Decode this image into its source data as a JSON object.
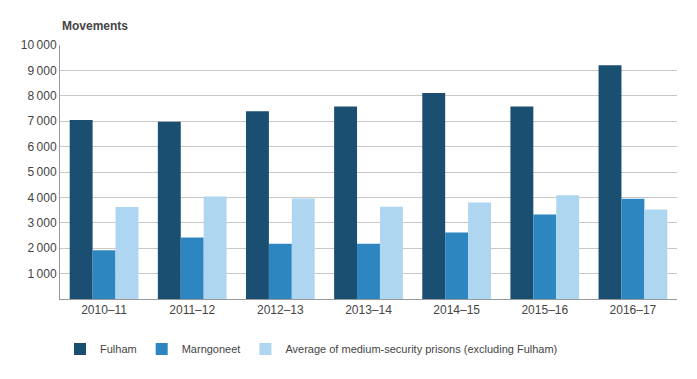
{
  "chart_data": {
    "type": "bar",
    "ylabel": "Movements",
    "categories": [
      "2010–11",
      "2011–12",
      "2012–13",
      "2013–14",
      "2014–15",
      "2015–16",
      "2016–17"
    ],
    "series": [
      {
        "name": "Fulham",
        "color": "#1B4F72",
        "values": [
          7050,
          6980,
          7390,
          7580,
          8110,
          7580,
          9200
        ]
      },
      {
        "name": "Marngoneet",
        "color": "#2E86C1",
        "values": [
          1920,
          2420,
          2180,
          2180,
          2620,
          3330,
          3950
        ]
      },
      {
        "name": "Average of medium-security prisons (excluding Fulham)",
        "color": "#AED6F1",
        "values": [
          3620,
          4040,
          3960,
          3630,
          3800,
          4080,
          3520
        ]
      }
    ],
    "ylim": [
      0,
      10000
    ],
    "yticks": [
      {
        "value": 1000,
        "label": "1 000"
      },
      {
        "value": 2000,
        "label": "2 000"
      },
      {
        "value": 3000,
        "label": "3 000"
      },
      {
        "value": 4000,
        "label": "4 000"
      },
      {
        "value": 5000,
        "label": "5 000"
      },
      {
        "value": 6000,
        "label": "6 000"
      },
      {
        "value": 7000,
        "label": "7 000"
      },
      {
        "value": 8000,
        "label": "8 000"
      },
      {
        "value": 9000,
        "label": "9 000"
      },
      {
        "value": 10000,
        "label": "10 000"
      }
    ],
    "grid": true,
    "legend": "bottom"
  }
}
